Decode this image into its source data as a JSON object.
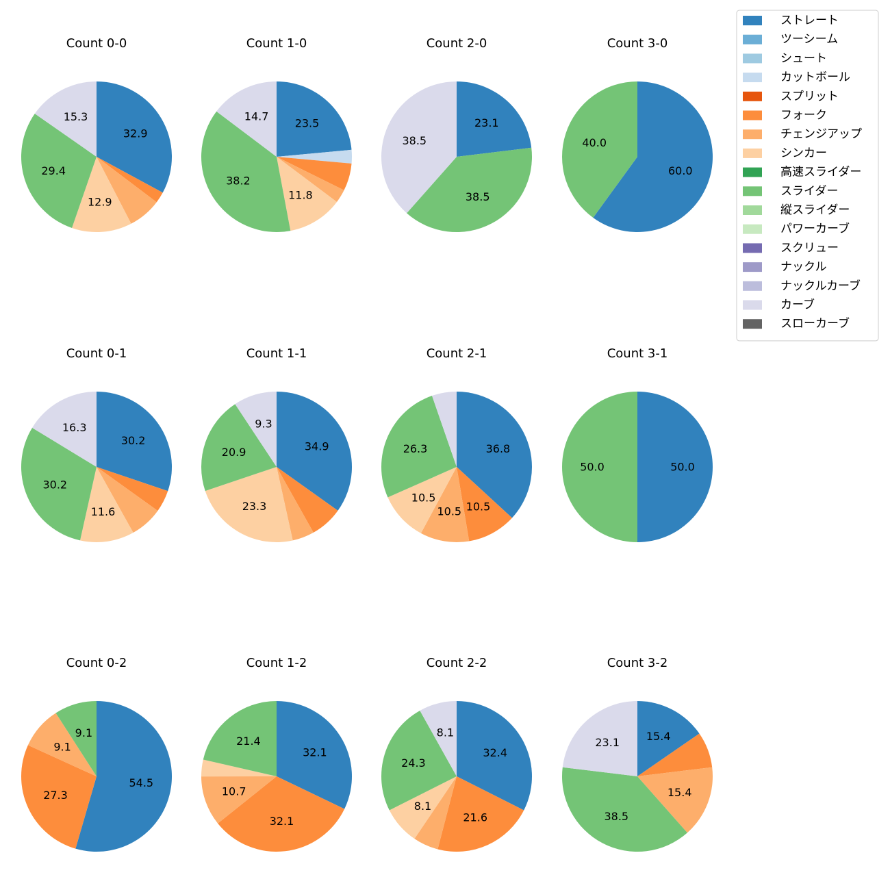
{
  "chart_data": {
    "type": "pie",
    "categories": [
      "ストレート",
      "ツーシーム",
      "シュート",
      "カットボール",
      "スプリット",
      "フォーク",
      "チェンジアップ",
      "シンカー",
      "高速スライダー",
      "スライダー",
      "縦スライダー",
      "パワーカーブ",
      "スクリュー",
      "ナックル",
      "ナックルカーブ",
      "カーブ",
      "スローカーブ"
    ],
    "colors": [
      "#3182bd",
      "#6baed6",
      "#9ecae1",
      "#c6dbef",
      "#e6550d",
      "#fd8d3c",
      "#fdae6b",
      "#fdd0a2",
      "#31a354",
      "#74c476",
      "#a1d99b",
      "#c7e9c0",
      "#756bb1",
      "#9e9ac8",
      "#bcbddc",
      "#dadaeb",
      "#636363"
    ],
    "legend_position": "top-right",
    "charts": [
      {
        "title": "Count 0-0",
        "slices": [
          {
            "category": "ストレート",
            "value": 32.9,
            "label": "32.9"
          },
          {
            "category": "スプリット",
            "value": 0,
            "label": ""
          },
          {
            "category": "フォーク",
            "value": 2.4,
            "label": ""
          },
          {
            "category": "チェンジアップ",
            "value": 7.1,
            "label": ""
          },
          {
            "category": "シンカー",
            "value": 12.9,
            "label": "12.9"
          },
          {
            "category": "スライダー",
            "value": 29.4,
            "label": "29.4"
          },
          {
            "category": "カーブ",
            "value": 15.3,
            "label": "15.3"
          }
        ]
      },
      {
        "title": "Count 1-0",
        "slices": [
          {
            "category": "ストレート",
            "value": 23.5,
            "label": "23.5"
          },
          {
            "category": "カットボール",
            "value": 2.9,
            "label": ""
          },
          {
            "category": "フォーク",
            "value": 5.9,
            "label": ""
          },
          {
            "category": "チェンジアップ",
            "value": 2.9,
            "label": ""
          },
          {
            "category": "シンカー",
            "value": 11.8,
            "label": "11.8"
          },
          {
            "category": "スライダー",
            "value": 38.2,
            "label": "38.2"
          },
          {
            "category": "カーブ",
            "value": 14.7,
            "label": "14.7"
          }
        ]
      },
      {
        "title": "Count 2-0",
        "slices": [
          {
            "category": "ストレート",
            "value": 23.1,
            "label": "23.1"
          },
          {
            "category": "スライダー",
            "value": 38.5,
            "label": "38.5"
          },
          {
            "category": "カーブ",
            "value": 38.5,
            "label": "38.5"
          }
        ]
      },
      {
        "title": "Count 3-0",
        "slices": [
          {
            "category": "ストレート",
            "value": 60.0,
            "label": "60.0"
          },
          {
            "category": "スライダー",
            "value": 40.0,
            "label": "40.0"
          }
        ]
      },
      {
        "title": "Count 0-1",
        "slices": [
          {
            "category": "ストレート",
            "value": 30.2,
            "label": "30.2"
          },
          {
            "category": "フォーク",
            "value": 4.7,
            "label": ""
          },
          {
            "category": "チェンジアップ",
            "value": 7.0,
            "label": ""
          },
          {
            "category": "シンカー",
            "value": 11.6,
            "label": "11.6"
          },
          {
            "category": "スライダー",
            "value": 30.2,
            "label": "30.2"
          },
          {
            "category": "カーブ",
            "value": 16.3,
            "label": "16.3"
          }
        ]
      },
      {
        "title": "Count 1-1",
        "slices": [
          {
            "category": "ストレート",
            "value": 34.9,
            "label": "34.9"
          },
          {
            "category": "フォーク",
            "value": 7.0,
            "label": ""
          },
          {
            "category": "チェンジアップ",
            "value": 4.7,
            "label": ""
          },
          {
            "category": "シンカー",
            "value": 23.3,
            "label": "23.3"
          },
          {
            "category": "スライダー",
            "value": 20.9,
            "label": "20.9"
          },
          {
            "category": "カーブ",
            "value": 9.3,
            "label": "9.3"
          }
        ]
      },
      {
        "title": "Count 2-1",
        "slices": [
          {
            "category": "ストレート",
            "value": 36.8,
            "label": "36.8"
          },
          {
            "category": "フォーク",
            "value": 10.5,
            "label": "10.5"
          },
          {
            "category": "チェンジアップ",
            "value": 10.5,
            "label": "10.5"
          },
          {
            "category": "シンカー",
            "value": 10.5,
            "label": "10.5"
          },
          {
            "category": "スライダー",
            "value": 26.3,
            "label": "26.3"
          },
          {
            "category": "カーブ",
            "value": 5.3,
            "label": ""
          }
        ]
      },
      {
        "title": "Count 3-1",
        "slices": [
          {
            "category": "ストレート",
            "value": 50.0,
            "label": "50.0"
          },
          {
            "category": "スライダー",
            "value": 50.0,
            "label": "50.0"
          }
        ]
      },
      {
        "title": "Count 0-2",
        "slices": [
          {
            "category": "ストレート",
            "value": 54.5,
            "label": "54.5"
          },
          {
            "category": "フォーク",
            "value": 27.3,
            "label": "27.3"
          },
          {
            "category": "チェンジアップ",
            "value": 9.1,
            "label": "9.1"
          },
          {
            "category": "スライダー",
            "value": 9.1,
            "label": "9.1"
          }
        ]
      },
      {
        "title": "Count 1-2",
        "slices": [
          {
            "category": "ストレート",
            "value": 32.1,
            "label": "32.1"
          },
          {
            "category": "フォーク",
            "value": 32.1,
            "label": "32.1"
          },
          {
            "category": "チェンジアップ",
            "value": 10.7,
            "label": "10.7"
          },
          {
            "category": "シンカー",
            "value": 3.6,
            "label": ""
          },
          {
            "category": "スライダー",
            "value": 21.4,
            "label": "21.4"
          }
        ]
      },
      {
        "title": "Count 2-2",
        "slices": [
          {
            "category": "ストレート",
            "value": 32.4,
            "label": "32.4"
          },
          {
            "category": "フォーク",
            "value": 21.6,
            "label": "21.6"
          },
          {
            "category": "チェンジアップ",
            "value": 5.4,
            "label": ""
          },
          {
            "category": "シンカー",
            "value": 8.1,
            "label": "8.1"
          },
          {
            "category": "スライダー",
            "value": 24.3,
            "label": "24.3"
          },
          {
            "category": "カーブ",
            "value": 8.1,
            "label": "8.1"
          }
        ]
      },
      {
        "title": "Count 3-2",
        "slices": [
          {
            "category": "ストレート",
            "value": 15.4,
            "label": "15.4"
          },
          {
            "category": "フォーク",
            "value": 7.7,
            "label": ""
          },
          {
            "category": "チェンジアップ",
            "value": 15.4,
            "label": "15.4"
          },
          {
            "category": "スライダー",
            "value": 38.5,
            "label": "38.5"
          },
          {
            "category": "カーブ",
            "value": 23.1,
            "label": "23.1"
          }
        ]
      }
    ]
  }
}
